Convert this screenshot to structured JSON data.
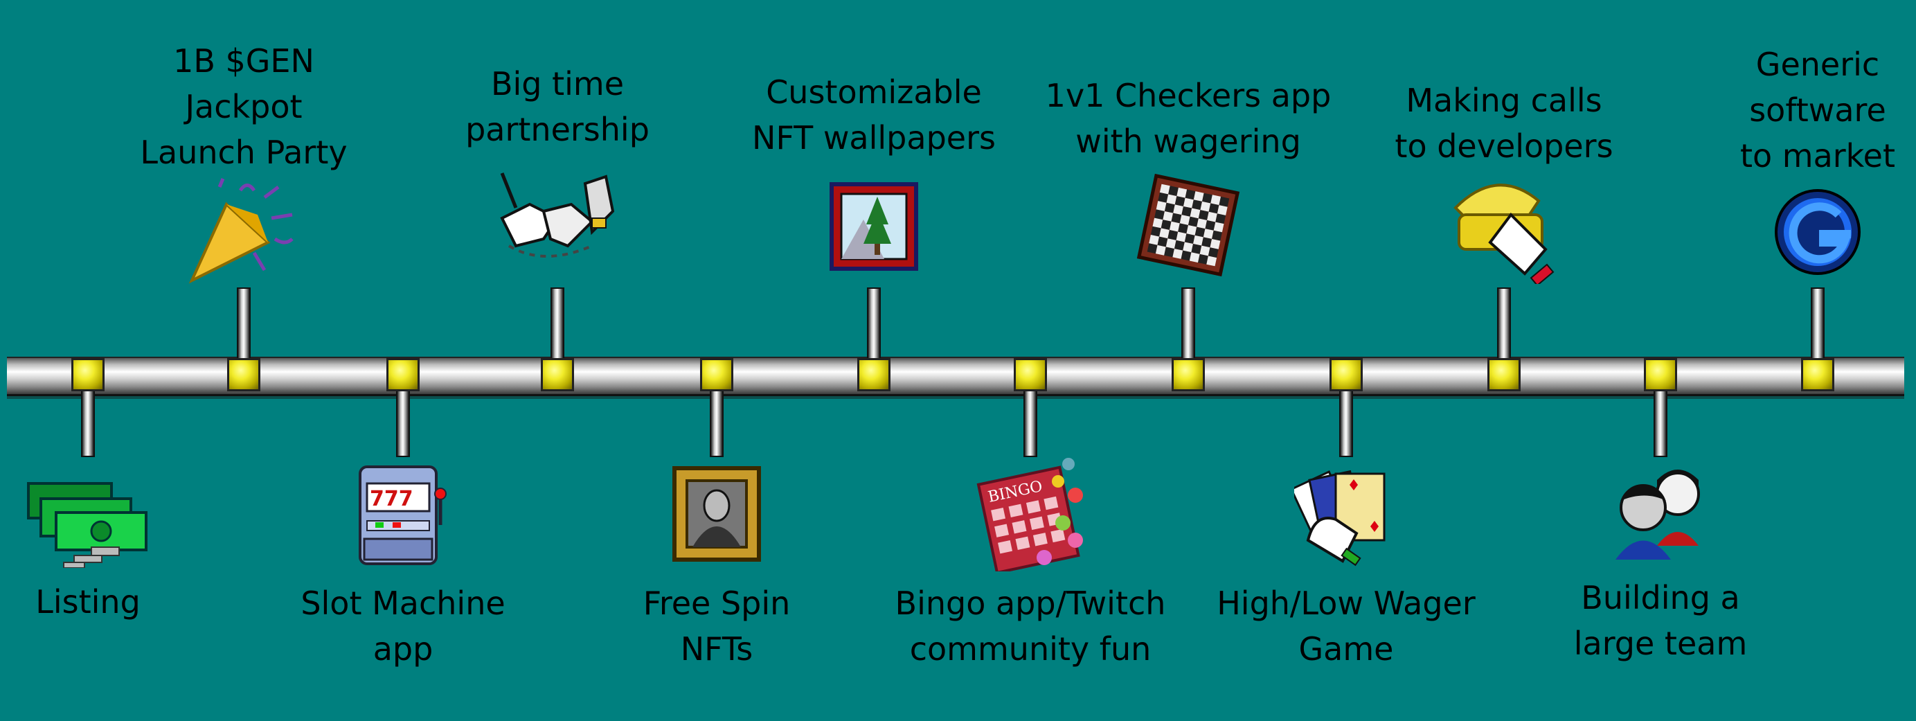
{
  "milestones": [
    {
      "id": "listing",
      "label": "Listing",
      "side": "below",
      "icon": "money-icon"
    },
    {
      "id": "jackpot",
      "label": "1B $GEN\nJackpot\nLaunch Party",
      "side": "above",
      "icon": "party-popper-icon"
    },
    {
      "id": "slot",
      "label": "Slot Machine\napp",
      "side": "below",
      "icon": "slot-machine-icon"
    },
    {
      "id": "partnership",
      "label": "Big time\npartnership",
      "side": "above",
      "icon": "handshake-icon"
    },
    {
      "id": "freespin",
      "label": "Free Spin\nNFTs",
      "side": "below",
      "icon": "framed-portrait-icon"
    },
    {
      "id": "wallpapers",
      "label": "Customizable\nNFT wallpapers",
      "side": "above",
      "icon": "framed-landscape-icon"
    },
    {
      "id": "bingo",
      "label": "Bingo app/Twitch\ncommunity fun",
      "side": "below",
      "icon": "bingo-card-icon"
    },
    {
      "id": "checkers",
      "label": "1v1 Checkers app\nwith wagering",
      "side": "above",
      "icon": "checkerboard-icon"
    },
    {
      "id": "highlow",
      "label": "High/Low Wager\nGame",
      "side": "below",
      "icon": "playing-cards-icon"
    },
    {
      "id": "calls",
      "label": "Making calls\nto developers",
      "side": "above",
      "icon": "telephone-icon"
    },
    {
      "id": "team",
      "label": "Building a\nlarge team",
      "side": "below",
      "icon": "people-icon"
    },
    {
      "id": "market",
      "label": "Generic\nsoftware\nto market",
      "side": "above",
      "icon": "generic-logo-icon"
    }
  ],
  "colors": {
    "background": "#00807f",
    "knob": "#f2ec2a",
    "text": "#000000"
  }
}
